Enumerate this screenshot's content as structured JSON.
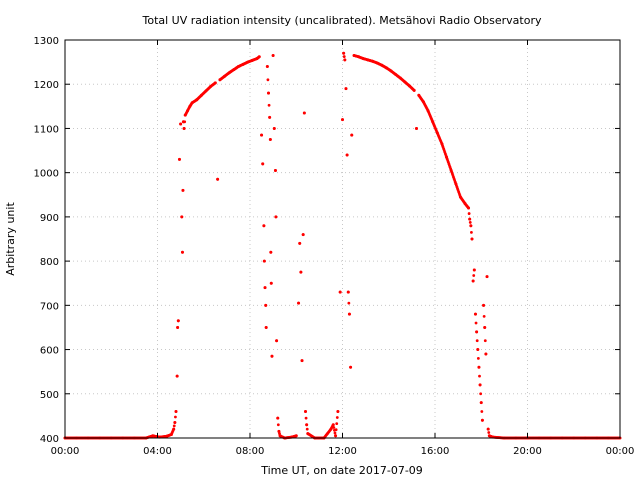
{
  "chart_data": {
    "type": "scatter",
    "title": "Total UV radiation intensity (uncalibrated). Metsähovi Radio Observatory",
    "xlabel": "Time UT, on date 2017-07-09",
    "ylabel": "Arbitrary unit",
    "xlim": [
      0,
      24
    ],
    "ylim": [
      400,
      1300
    ],
    "grid": true,
    "x_ticks": [
      {
        "value": 0,
        "label": "00:00"
      },
      {
        "value": 4,
        "label": "04:00"
      },
      {
        "value": 8,
        "label": "08:00"
      },
      {
        "value": 12,
        "label": "12:00"
      },
      {
        "value": 16,
        "label": "16:00"
      },
      {
        "value": 20,
        "label": "20:00"
      },
      {
        "value": 24,
        "label": "00:00"
      }
    ],
    "y_ticks": [
      {
        "value": 400,
        "label": "400"
      },
      {
        "value": 500,
        "label": "500"
      },
      {
        "value": 600,
        "label": "600"
      },
      {
        "value": 700,
        "label": "700"
      },
      {
        "value": 800,
        "label": "800"
      },
      {
        "value": 900,
        "label": "900"
      },
      {
        "value": 1000,
        "label": "1000"
      },
      {
        "value": 1100,
        "label": "1100"
      },
      {
        "value": 1200,
        "label": "1200"
      },
      {
        "value": 1300,
        "label": "1300"
      }
    ],
    "series_color": "#ff0000",
    "series": [
      {
        "values": [
          [
            0.0,
            400
          ],
          [
            0.5,
            400
          ],
          [
            1.0,
            400
          ],
          [
            1.5,
            400
          ],
          [
            2.0,
            400
          ],
          [
            2.5,
            400
          ],
          [
            3.0,
            400
          ],
          [
            3.5,
            400
          ],
          [
            3.8,
            405
          ],
          [
            4.1,
            402
          ],
          [
            4.4,
            404
          ],
          [
            4.6,
            408
          ],
          [
            4.7,
            420
          ],
          [
            4.75,
            435
          ],
          [
            4.8,
            460
          ],
          [
            4.85,
            540
          ],
          [
            4.87,
            650
          ],
          [
            4.9,
            665
          ],
          [
            4.95,
            1030
          ],
          [
            5.0,
            1110
          ],
          [
            5.05,
            900
          ],
          [
            5.08,
            820
          ],
          [
            5.1,
            960
          ],
          [
            5.12,
            1115
          ],
          [
            5.15,
            1100
          ],
          [
            5.2,
            1130
          ],
          [
            5.3,
            1140
          ],
          [
            5.4,
            1150
          ],
          [
            5.5,
            1158
          ],
          [
            5.7,
            1165
          ],
          [
            5.9,
            1175
          ],
          [
            6.1,
            1185
          ],
          [
            6.3,
            1195
          ],
          [
            6.5,
            1203
          ],
          [
            6.6,
            985
          ],
          [
            6.7,
            1210
          ],
          [
            6.9,
            1218
          ],
          [
            7.1,
            1226
          ],
          [
            7.3,
            1233
          ],
          [
            7.5,
            1240
          ],
          [
            7.7,
            1245
          ],
          [
            7.9,
            1250
          ],
          [
            8.1,
            1254
          ],
          [
            8.3,
            1258
          ],
          [
            8.4,
            1262
          ],
          [
            8.5,
            1085
          ],
          [
            8.55,
            1020
          ],
          [
            8.6,
            880
          ],
          [
            8.62,
            800
          ],
          [
            8.65,
            740
          ],
          [
            8.68,
            700
          ],
          [
            8.7,
            650
          ],
          [
            8.75,
            1240
          ],
          [
            8.8,
            1180
          ],
          [
            8.85,
            1125
          ],
          [
            8.88,
            1075
          ],
          [
            8.9,
            820
          ],
          [
            8.92,
            750
          ],
          [
            8.95,
            585
          ],
          [
            9.0,
            1265
          ],
          [
            9.05,
            1100
          ],
          [
            9.1,
            1005
          ],
          [
            9.12,
            900
          ],
          [
            9.15,
            620
          ],
          [
            9.2,
            445
          ],
          [
            9.25,
            415
          ],
          [
            9.3,
            405
          ],
          [
            9.5,
            400
          ],
          [
            9.8,
            402
          ],
          [
            10.0,
            405
          ],
          [
            10.1,
            705
          ],
          [
            10.15,
            840
          ],
          [
            10.2,
            775
          ],
          [
            10.25,
            575
          ],
          [
            10.3,
            860
          ],
          [
            10.35,
            1135
          ],
          [
            10.4,
            460
          ],
          [
            10.45,
            430
          ],
          [
            10.5,
            410
          ],
          [
            10.8,
            400
          ],
          [
            11.2,
            400
          ],
          [
            11.5,
            420
          ],
          [
            11.6,
            430
          ],
          [
            11.7,
            405
          ],
          [
            11.8,
            460
          ],
          [
            11.9,
            730
          ],
          [
            12.0,
            1120
          ],
          [
            12.05,
            1270
          ],
          [
            12.1,
            1255
          ],
          [
            12.15,
            1190
          ],
          [
            12.2,
            1040
          ],
          [
            12.25,
            730
          ],
          [
            12.3,
            680
          ],
          [
            12.35,
            560
          ],
          [
            12.4,
            1085
          ],
          [
            12.5,
            1265
          ],
          [
            12.7,
            1262
          ],
          [
            12.9,
            1258
          ],
          [
            13.1,
            1255
          ],
          [
            13.3,
            1252
          ],
          [
            13.5,
            1248
          ],
          [
            13.7,
            1243
          ],
          [
            13.9,
            1237
          ],
          [
            14.1,
            1230
          ],
          [
            14.3,
            1222
          ],
          [
            14.5,
            1214
          ],
          [
            14.7,
            1205
          ],
          [
            14.9,
            1196
          ],
          [
            15.1,
            1186
          ],
          [
            15.2,
            1100
          ],
          [
            15.3,
            1175
          ],
          [
            15.5,
            1160
          ],
          [
            15.7,
            1140
          ],
          [
            15.9,
            1115
          ],
          [
            16.1,
            1090
          ],
          [
            16.3,
            1065
          ],
          [
            16.5,
            1035
          ],
          [
            16.7,
            1005
          ],
          [
            16.9,
            975
          ],
          [
            17.1,
            945
          ],
          [
            17.3,
            930
          ],
          [
            17.45,
            920
          ],
          [
            17.5,
            895
          ],
          [
            17.55,
            880
          ],
          [
            17.6,
            850
          ],
          [
            17.65,
            755
          ],
          [
            17.7,
            780
          ],
          [
            17.75,
            680
          ],
          [
            17.8,
            640
          ],
          [
            17.85,
            600
          ],
          [
            17.9,
            560
          ],
          [
            17.95,
            520
          ],
          [
            18.0,
            480
          ],
          [
            18.05,
            440
          ],
          [
            18.1,
            700
          ],
          [
            18.15,
            650
          ],
          [
            18.2,
            590
          ],
          [
            18.25,
            765
          ],
          [
            18.3,
            420
          ],
          [
            18.35,
            405
          ],
          [
            18.5,
            402
          ],
          [
            19.0,
            400
          ],
          [
            19.5,
            400
          ],
          [
            20.0,
            400
          ],
          [
            20.5,
            400
          ],
          [
            21.0,
            400
          ],
          [
            21.5,
            400
          ],
          [
            22.0,
            400
          ],
          [
            22.5,
            400
          ],
          [
            23.0,
            400
          ],
          [
            23.5,
            400
          ],
          [
            24.0,
            400
          ]
        ]
      }
    ]
  }
}
